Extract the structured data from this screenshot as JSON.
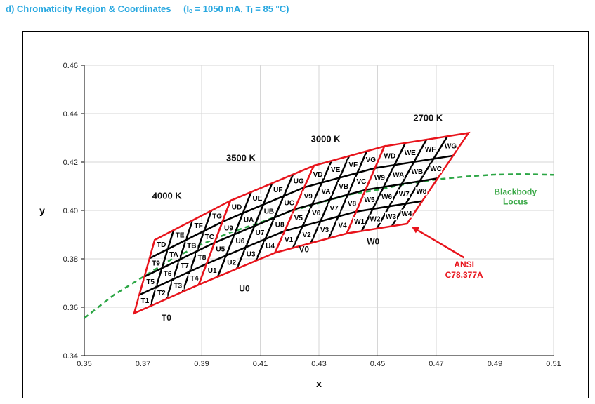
{
  "caption": {
    "prefix": "d)",
    "title": "Chromaticity Region & Coordinates",
    "conditions": "(Iₑ = 1050 mA, Tⱼ = 85 °C)"
  },
  "chart_data": {
    "type": "scatter",
    "xlabel": "x",
    "ylabel": "y",
    "xlim": [
      0.35,
      0.51
    ],
    "ylim": [
      0.34,
      0.46
    ],
    "xticks": [
      "0.35",
      "0.37",
      "0.39",
      "0.41",
      "0.43",
      "0.45",
      "0.47",
      "0.49",
      "0.51"
    ],
    "yticks": [
      "0.34",
      "0.36",
      "0.38",
      "0.40",
      "0.42",
      "0.44",
      "0.46"
    ],
    "colors": {
      "region": "#e8141c",
      "grid": "#000000",
      "locus": "#2ca645",
      "ansi": "#e8141c"
    },
    "cct_labels": [
      {
        "text": "4000 K",
        "x": 0.3782,
        "y": 0.4048
      },
      {
        "text": "3500 K",
        "x": 0.4034,
        "y": 0.4205
      },
      {
        "text": "3000 K",
        "x": 0.4323,
        "y": 0.4283
      },
      {
        "text": "2700 K",
        "x": 0.4672,
        "y": 0.437
      }
    ],
    "regions": [
      {
        "group": "T0",
        "outline": [
          [
            0.367,
            0.3575
          ],
          [
            0.389,
            0.3693
          ],
          [
            0.3998,
            0.404
          ],
          [
            0.374,
            0.3878
          ]
        ],
        "bins": [
          "T1",
          "T2",
          "T3",
          "T4",
          "T5",
          "T6",
          "T7",
          "T8",
          "T9",
          "TA",
          "TB",
          "TC",
          "TD",
          "TE",
          "TF",
          "TG"
        ]
      },
      {
        "group": "U0",
        "outline": [
          [
            0.389,
            0.3693
          ],
          [
            0.415,
            0.3825
          ],
          [
            0.4283,
            0.4185
          ],
          [
            0.3998,
            0.404
          ]
        ],
        "bins": [
          "U1",
          "U2",
          "U3",
          "U4",
          "U5",
          "U6",
          "U7",
          "U8",
          "U9",
          "UA",
          "UB",
          "UC",
          "UD",
          "UE",
          "UF",
          "UG"
        ]
      },
      {
        "group": "V0",
        "outline": [
          [
            0.415,
            0.3825
          ],
          [
            0.4395,
            0.3905
          ],
          [
            0.4523,
            0.4265
          ],
          [
            0.4283,
            0.4185
          ]
        ],
        "bins": [
          "V1",
          "V2",
          "V3",
          "V4",
          "V5",
          "V6",
          "V7",
          "V8",
          "V9",
          "VA",
          "VB",
          "VC",
          "VD",
          "VE",
          "VF",
          "VG"
        ]
      },
      {
        "group": "W0",
        "outline": [
          [
            0.4395,
            0.3905
          ],
          [
            0.46,
            0.3945
          ],
          [
            0.481,
            0.432
          ],
          [
            0.4523,
            0.4265
          ]
        ],
        "bins": [
          "W1",
          "W2",
          "W3",
          "W4",
          "W5",
          "W6",
          "W7",
          "W8",
          "W9",
          "WA",
          "WB",
          "WC",
          "WD",
          "WE",
          "WF",
          "WG"
        ]
      }
    ],
    "group_labels": [
      {
        "text": "T0",
        "x": 0.378,
        "y": 0.3545
      },
      {
        "text": "U0",
        "x": 0.4046,
        "y": 0.3665
      },
      {
        "text": "V0",
        "x": 0.4249,
        "y": 0.3828
      },
      {
        "text": "W0",
        "x": 0.4485,
        "y": 0.386
      }
    ],
    "blackbody_locus": {
      "name": "Blackbody Locus",
      "label_lines": [
        "Blackbody",
        "Locus"
      ],
      "label_pos": {
        "x": 0.497,
        "y": 0.4065
      },
      "points": [
        [
          0.35,
          0.3555
        ],
        [
          0.36,
          0.365
        ],
        [
          0.37,
          0.3725
        ],
        [
          0.38,
          0.38
        ],
        [
          0.39,
          0.386
        ],
        [
          0.4,
          0.391
        ],
        [
          0.41,
          0.395
        ],
        [
          0.42,
          0.3995
        ],
        [
          0.43,
          0.403
        ],
        [
          0.44,
          0.4065
        ],
        [
          0.45,
          0.4085
        ],
        [
          0.46,
          0.411
        ],
        [
          0.47,
          0.4128
        ],
        [
          0.48,
          0.414
        ],
        [
          0.49,
          0.4148
        ],
        [
          0.5,
          0.415
        ],
        [
          0.51,
          0.4147
        ]
      ]
    },
    "annotation": {
      "lines": [
        "ANSI",
        "C78.377A"
      ],
      "text_pos": {
        "x": 0.4795,
        "y": 0.3765
      },
      "arrow_tail": {
        "x": 0.4795,
        "y": 0.3805
      },
      "arrow_head": {
        "x": 0.462,
        "y": 0.393
      }
    }
  }
}
